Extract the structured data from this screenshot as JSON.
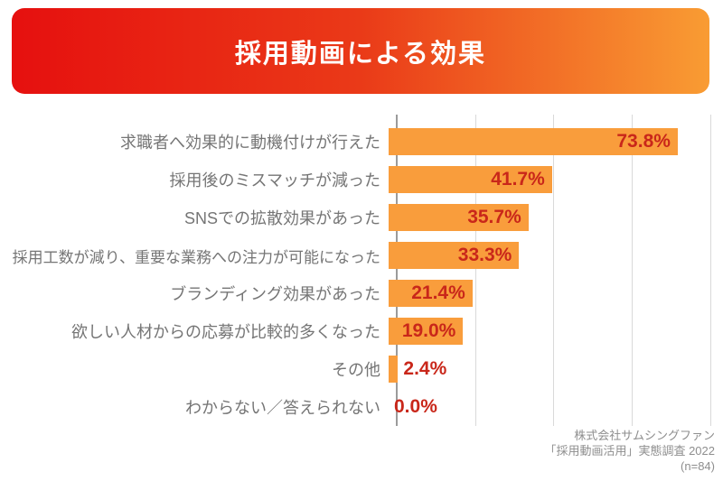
{
  "title": {
    "text": "採用動画による効果"
  },
  "chart_data": {
    "type": "bar",
    "orientation": "horizontal",
    "title": "採用動画による効果",
    "categories": [
      "求職者へ効果的に動機付けが行えた",
      "採用後のミスマッチが減った",
      "SNSでの拡散効果があった",
      "採用工数が減り、重要な業務への注力が可能になった",
      "ブランディング効果があった",
      "欲しい人材からの応募が比較的多くなった",
      "その他",
      "わからない／答えられない"
    ],
    "values": [
      73.8,
      41.7,
      35.7,
      33.3,
      21.4,
      19.0,
      2.4,
      0.0
    ],
    "value_labels": [
      "73.8%",
      "41.7%",
      "35.7%",
      "33.3%",
      "21.4%",
      "19.0%",
      "2.4%",
      "0.0%"
    ],
    "xlabel": "",
    "ylabel": "",
    "xlim": [
      0,
      80
    ],
    "gridline_step": 20,
    "grid": true,
    "legend": false,
    "bar_color": "#f99d3c",
    "value_color": "#c9271a",
    "label_color": "#757575",
    "axis_color": "#9b9b9b",
    "gridline_color": "#d9d9d9"
  },
  "banner": {
    "gradient_start": "#e6100f",
    "gradient_end": "#f99c33",
    "text_color": "#ffffff"
  },
  "source": {
    "line1": "株式会社サムシングファン",
    "line2": "「採用動画活用」実態調査 2022",
    "line3": "(n=84)"
  }
}
